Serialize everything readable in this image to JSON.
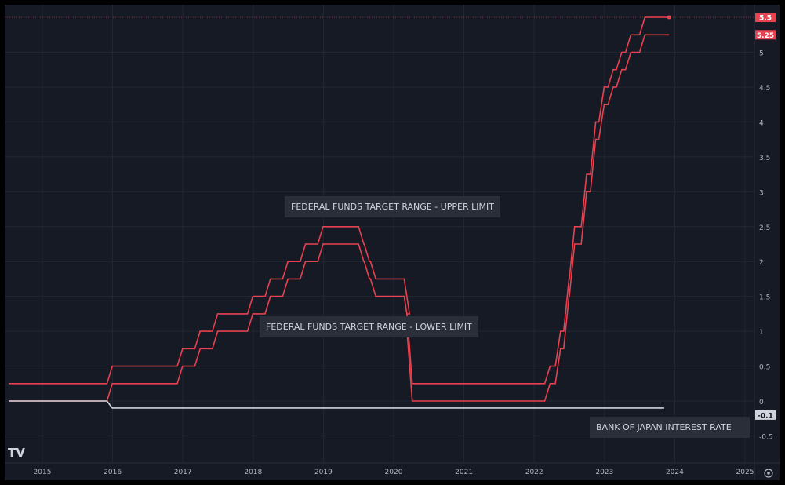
{
  "chart_data": {
    "type": "line",
    "title": "",
    "xlabel": "",
    "ylabel": "",
    "xlim": [
      2014.52,
      2025.1
    ],
    "ylim": [
      -0.9,
      5.8
    ],
    "x_ticks": [
      "2015",
      "2016",
      "2017",
      "2018",
      "2019",
      "2020",
      "2021",
      "2022",
      "2023",
      "2024",
      "2025"
    ],
    "y_ticks": [
      "5",
      "4.5",
      "4",
      "3.5",
      "3",
      "2.5",
      "2",
      "1.5",
      "1",
      "0.5",
      "0",
      "-0.5"
    ],
    "grid": true,
    "series": [
      {
        "name": "FEDERAL FUNDS TARGET RANGE - UPPER LIMIT",
        "color": "#e8414f",
        "start": [
          2014.52,
          0.25
        ],
        "end": 2023.92,
        "changes": [
          [
            2015.92,
            0.5
          ],
          [
            2016.92,
            0.75
          ],
          [
            2017.17,
            1.0
          ],
          [
            2017.42,
            1.25
          ],
          [
            2017.92,
            1.5
          ],
          [
            2018.17,
            1.75
          ],
          [
            2018.42,
            2.0
          ],
          [
            2018.67,
            2.25
          ],
          [
            2018.92,
            2.5
          ],
          [
            2019.5,
            2.25
          ],
          [
            2019.58,
            2.0
          ],
          [
            2019.67,
            1.75
          ],
          [
            2020.15,
            1.25
          ],
          [
            2020.19,
            0.25
          ],
          [
            2022.15,
            0.5
          ],
          [
            2022.3,
            1.0
          ],
          [
            2022.42,
            1.75
          ],
          [
            2022.5,
            2.5
          ],
          [
            2022.67,
            3.25
          ],
          [
            2022.8,
            4.0
          ],
          [
            2022.92,
            4.5
          ],
          [
            2023.05,
            4.75
          ],
          [
            2023.17,
            5.0
          ],
          [
            2023.3,
            5.25
          ],
          [
            2023.5,
            5.5
          ]
        ],
        "last_value": "5.5"
      },
      {
        "name": "FEDERAL FUNDS TARGET RANGE - LOWER LIMIT",
        "color": "#e8414f",
        "start": [
          2014.52,
          0.0
        ],
        "end": 2023.92,
        "changes": [
          [
            2015.92,
            0.25
          ],
          [
            2016.92,
            0.5
          ],
          [
            2017.17,
            0.75
          ],
          [
            2017.42,
            1.0
          ],
          [
            2017.92,
            1.25
          ],
          [
            2018.17,
            1.5
          ],
          [
            2018.42,
            1.75
          ],
          [
            2018.67,
            2.0
          ],
          [
            2018.92,
            2.25
          ],
          [
            2019.5,
            2.0
          ],
          [
            2019.58,
            1.75
          ],
          [
            2019.67,
            1.5
          ],
          [
            2020.15,
            1.0
          ],
          [
            2020.19,
            0.0
          ],
          [
            2022.15,
            0.25
          ],
          [
            2022.3,
            0.75
          ],
          [
            2022.42,
            1.5
          ],
          [
            2022.5,
            2.25
          ],
          [
            2022.67,
            3.0
          ],
          [
            2022.8,
            3.75
          ],
          [
            2022.92,
            4.25
          ],
          [
            2023.05,
            4.5
          ],
          [
            2023.17,
            4.75
          ],
          [
            2023.3,
            5.0
          ],
          [
            2023.5,
            5.25
          ]
        ],
        "last_value": "5.25"
      },
      {
        "name": "BANK OF JAPAN INTEREST RATE",
        "color": "#d1d4dc",
        "start": [
          2014.52,
          0.0
        ],
        "end": 2023.85,
        "changes": [
          [
            2015.92,
            -0.1
          ]
        ],
        "last_value": "-0.1"
      }
    ]
  },
  "logo": "TV",
  "settings_icon": "gear-icon"
}
